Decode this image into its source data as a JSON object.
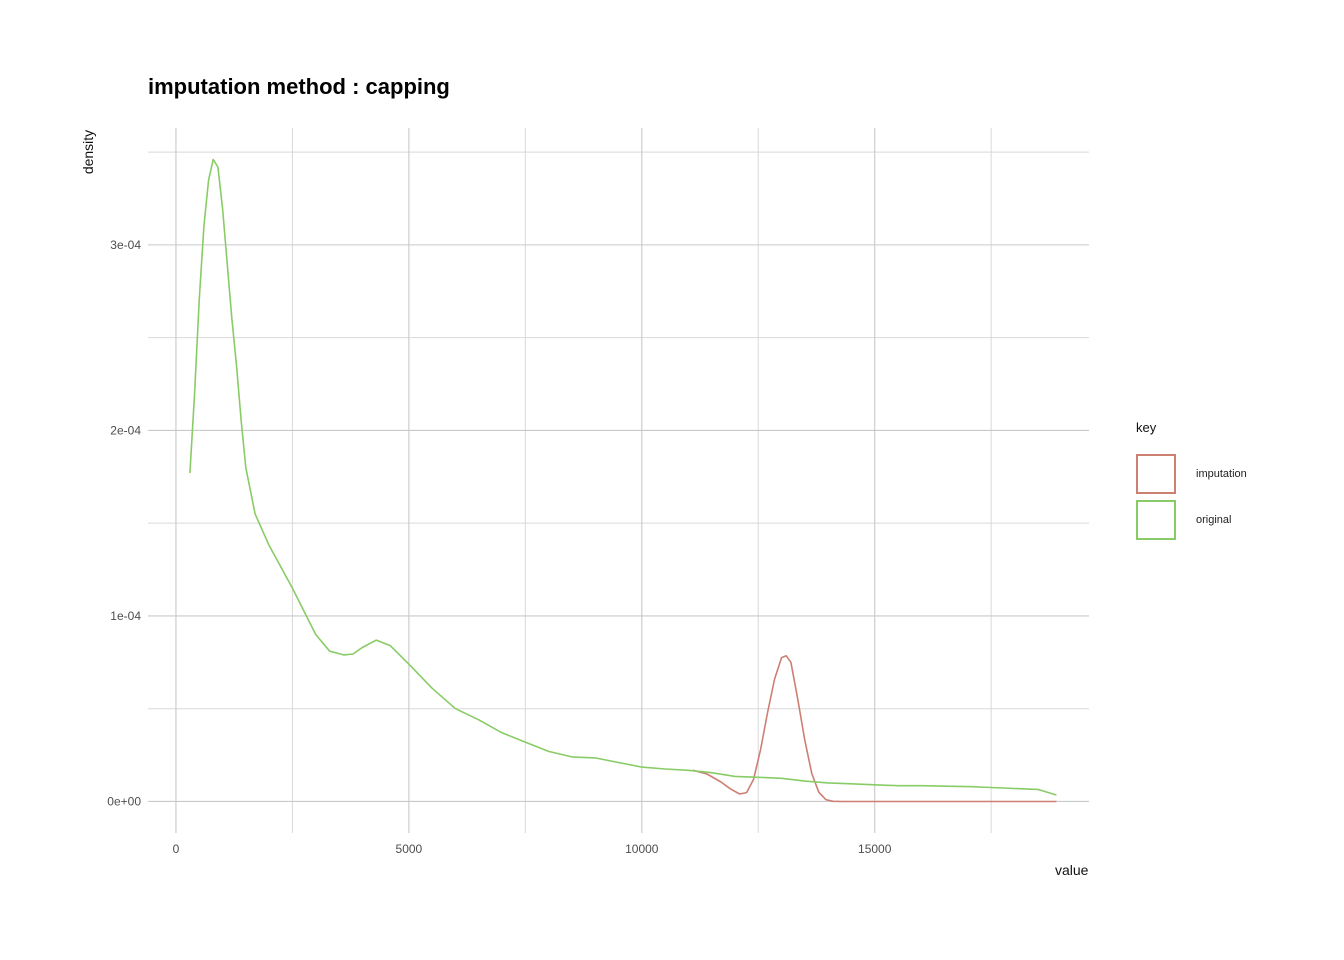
{
  "chart_data": {
    "type": "line",
    "title": "imputation method : capping",
    "xlabel": "value",
    "ylabel": "density",
    "xlim": [
      -600,
      19600
    ],
    "ylim": [
      -1.7e-05,
      0.000363
    ],
    "x_ticks": [
      0,
      5000,
      10000,
      15000
    ],
    "x_tick_labels": [
      "0",
      "5000",
      "10000",
      "15000"
    ],
    "y_ticks": [
      0,
      0.0001,
      0.0002,
      0.0003
    ],
    "y_tick_labels": [
      "0e+00",
      "1e-04",
      "2e-04",
      "3e-04"
    ],
    "x_minor": [
      2500,
      7500,
      12500,
      17500
    ],
    "y_minor": [
      5e-05,
      0.00015,
      0.00025,
      0.00035
    ],
    "grid": true,
    "legend": {
      "title": "key",
      "position": "right"
    },
    "series": [
      {
        "name": "imputation",
        "color": "#CD7F72",
        "x": [
          11100,
          11400,
          11700,
          11900,
          12100,
          12250,
          12400,
          12550,
          12700,
          12850,
          13000,
          13100,
          13200,
          13350,
          13500,
          13650,
          13800,
          13950,
          14100,
          14300,
          15000,
          16000,
          17000,
          18000,
          18900
        ],
        "y": [
          1.68e-05,
          1.48e-05,
          1.05e-05,
          6.8e-06,
          4e-06,
          4.8e-06,
          1.2e-05,
          2.8e-05,
          4.8e-05,
          6.6e-05,
          7.75e-05,
          7.85e-05,
          7.5e-05,
          5.5e-05,
          3.3e-05,
          1.5e-05,
          5e-06,
          1e-06,
          1e-07,
          0,
          0,
          0,
          0,
          0,
          0
        ]
      },
      {
        "name": "original",
        "color": "#88CC66",
        "x": [
          300,
          400,
          500,
          600,
          700,
          800,
          900,
          1000,
          1100,
          1200,
          1300,
          1400,
          1500,
          1700,
          2000,
          2500,
          3000,
          3300,
          3600,
          3800,
          4000,
          4300,
          4600,
          5000,
          5500,
          6000,
          6500,
          7000,
          7500,
          8000,
          8500,
          9000,
          9500,
          10000,
          10500,
          11000,
          11500,
          12000,
          12500,
          13000,
          13500,
          14000,
          14500,
          15000,
          15500,
          16000,
          16500,
          17000,
          17500,
          18000,
          18500,
          18900
        ],
        "y": [
          0.000177,
          0.00022,
          0.00027,
          0.00031,
          0.000335,
          0.000346,
          0.000342,
          0.00032,
          0.00029,
          0.00026,
          0.000235,
          0.000205,
          0.00018,
          0.000155,
          0.000138,
          0.000115,
          9e-05,
          8.1e-05,
          7.9e-05,
          7.95e-05,
          8.3e-05,
          8.7e-05,
          8.4e-05,
          7.4e-05,
          6.1e-05,
          5e-05,
          4.4e-05,
          3.7e-05,
          3.2e-05,
          2.7e-05,
          2.4e-05,
          2.35e-05,
          2.1e-05,
          1.85e-05,
          1.75e-05,
          1.68e-05,
          1.55e-05,
          1.35e-05,
          1.3e-05,
          1.25e-05,
          1.1e-05,
          1e-05,
          9.5e-06,
          9e-06,
          8.5e-06,
          8.5e-06,
          8.2e-06,
          8e-06,
          7.5e-06,
          7e-06,
          6.5e-06,
          3.5e-06
        ]
      }
    ]
  }
}
